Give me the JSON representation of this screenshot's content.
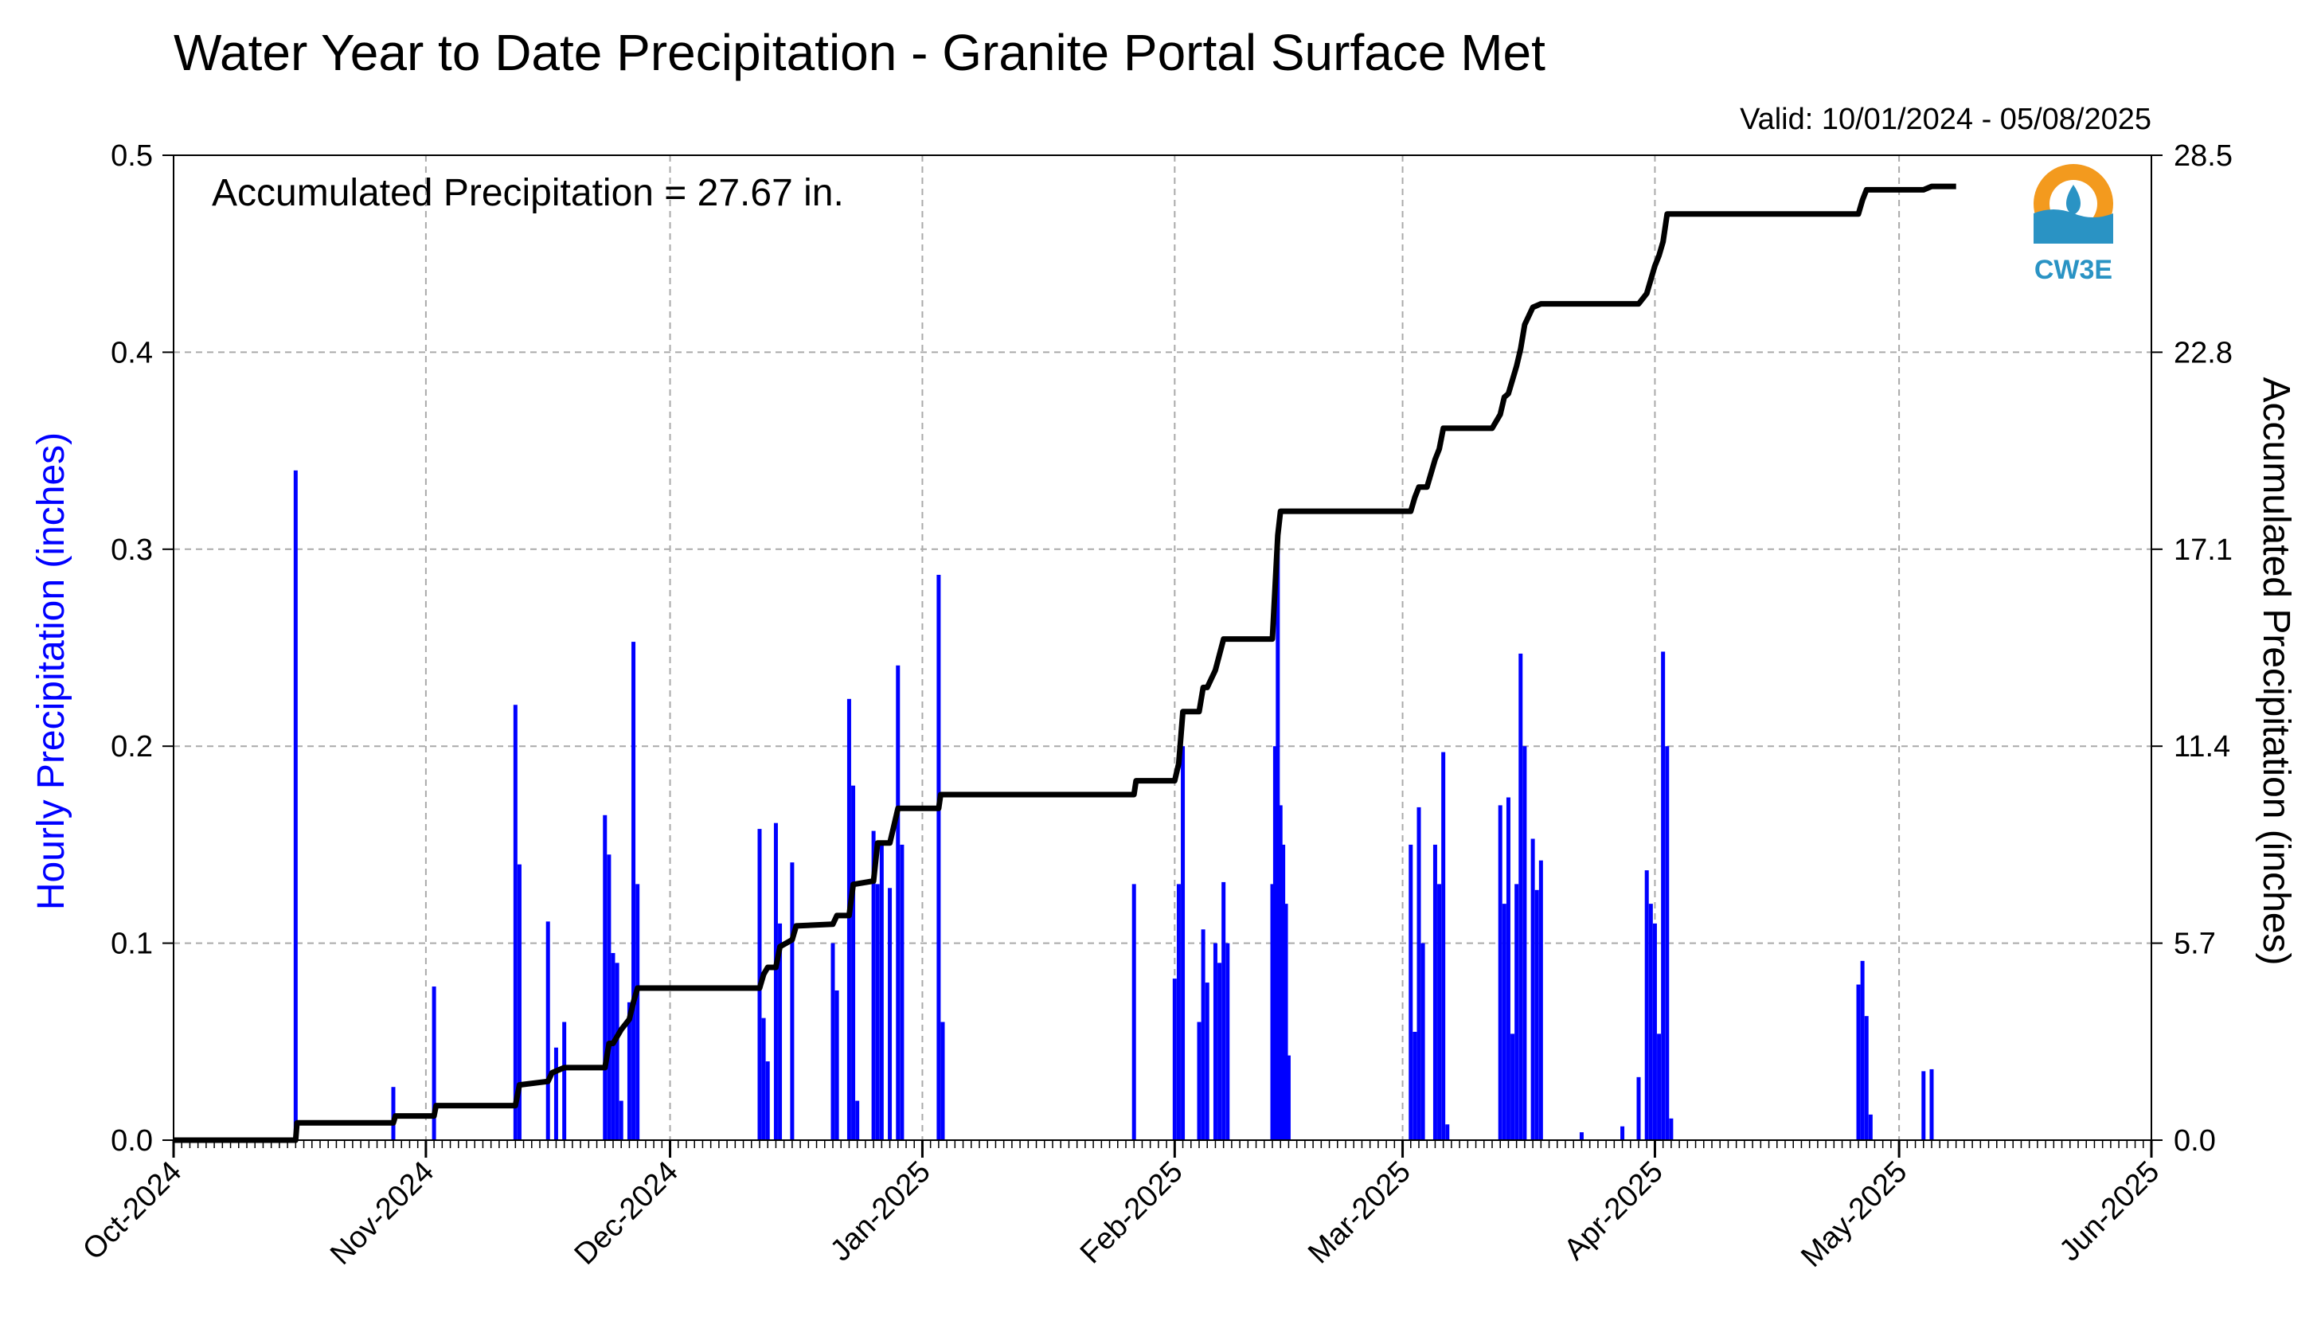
{
  "chart_data": {
    "type": "bar+line",
    "title": "Water Year to Date Precipitation - Granite Portal Surface Met",
    "valid_text": "Valid: 10/01/2024 - 05/08/2025",
    "annotation": "Accumulated Precipitation = 27.67 in.",
    "ylabel_left": "Hourly Precipitation (inches)",
    "ylabel_right": "Accumulated Precipitation (inches)",
    "x_start": "2024-10-01",
    "x_end": "2025-06-01",
    "x_ticks": [
      {
        "date": "2024-10-01",
        "label": "Oct-2024"
      },
      {
        "date": "2024-11-01",
        "label": "Nov-2024"
      },
      {
        "date": "2024-12-01",
        "label": "Dec-2024"
      },
      {
        "date": "2025-01-01",
        "label": "Jan-2025"
      },
      {
        "date": "2025-02-01",
        "label": "Feb-2025"
      },
      {
        "date": "2025-03-01",
        "label": "Mar-2025"
      },
      {
        "date": "2025-04-01",
        "label": "Apr-2025"
      },
      {
        "date": "2025-05-01",
        "label": "May-2025"
      },
      {
        "date": "2025-06-01",
        "label": "Jun-2025"
      }
    ],
    "ylim_left": [
      0,
      0.5
    ],
    "yticks_left": [
      "0.0",
      "0.1",
      "0.2",
      "0.3",
      "0.4",
      "0.5"
    ],
    "ylim_right": [
      0,
      28.5
    ],
    "yticks_right": [
      "0.0",
      "5.7",
      "11.4",
      "17.1",
      "22.8",
      "28.5"
    ],
    "grid": true,
    "colors": {
      "hourly": "#0000ff",
      "accumulated": "#000000",
      "grid": "#aaaaaa"
    },
    "hourly_series": {
      "name": "Hourly Precipitation",
      "points": [
        [
          "2024-10-16",
          0.34
        ],
        [
          "2024-10-28",
          0.027
        ],
        [
          "2024-11-02",
          0.078
        ],
        [
          "2024-11-12",
          0.221
        ],
        [
          "2024-11-12T12",
          0.14
        ],
        [
          "2024-11-16",
          0.111
        ],
        [
          "2024-11-17",
          0.047
        ],
        [
          "2024-11-18",
          0.06
        ],
        [
          "2024-11-23",
          0.165
        ],
        [
          "2024-11-23T12",
          0.145
        ],
        [
          "2024-11-24",
          0.095
        ],
        [
          "2024-11-24T12",
          0.09
        ],
        [
          "2024-11-25",
          0.02
        ],
        [
          "2024-11-26",
          0.07
        ],
        [
          "2024-11-26T12",
          0.253
        ],
        [
          "2024-11-27",
          0.13
        ],
        [
          "2024-12-12",
          0.158
        ],
        [
          "2024-12-12T12",
          0.062
        ],
        [
          "2024-12-13",
          0.04
        ],
        [
          "2024-12-14",
          0.161
        ],
        [
          "2024-12-14T12",
          0.11
        ],
        [
          "2024-12-16",
          0.141
        ],
        [
          "2024-12-21",
          0.1
        ],
        [
          "2024-12-21T12",
          0.076
        ],
        [
          "2024-12-23",
          0.224
        ],
        [
          "2024-12-23T12",
          0.18
        ],
        [
          "2024-12-24",
          0.02
        ],
        [
          "2024-12-26",
          0.157
        ],
        [
          "2024-12-26T12",
          0.13
        ],
        [
          "2024-12-27",
          0.15
        ],
        [
          "2024-12-28",
          0.128
        ],
        [
          "2024-12-29",
          0.241
        ],
        [
          "2024-12-29T12",
          0.15
        ],
        [
          "2025-01-03",
          0.287
        ],
        [
          "2025-01-03T12",
          0.06
        ],
        [
          "2025-01-27",
          0.13
        ],
        [
          "2025-02-01",
          0.082
        ],
        [
          "2025-02-01T12",
          0.13
        ],
        [
          "2025-02-02",
          0.2
        ],
        [
          "2025-02-04",
          0.06
        ],
        [
          "2025-02-04T12",
          0.107
        ],
        [
          "2025-02-05",
          0.08
        ],
        [
          "2025-02-06",
          0.1
        ],
        [
          "2025-02-06T12",
          0.09
        ],
        [
          "2025-02-07",
          0.131
        ],
        [
          "2025-02-07T12",
          0.1
        ],
        [
          "2025-02-13",
          0.13
        ],
        [
          "2025-02-13T08",
          0.2
        ],
        [
          "2025-02-13T16",
          0.309
        ],
        [
          "2025-02-14",
          0.17
        ],
        [
          "2025-02-14T08",
          0.15
        ],
        [
          "2025-02-14T16",
          0.12
        ],
        [
          "2025-02-15",
          0.043
        ],
        [
          "2025-03-02",
          0.15
        ],
        [
          "2025-03-02T12",
          0.055
        ],
        [
          "2025-03-03",
          0.169
        ],
        [
          "2025-03-03T12",
          0.1
        ],
        [
          "2025-03-05",
          0.15
        ],
        [
          "2025-03-05T12",
          0.13
        ],
        [
          "2025-03-06",
          0.197
        ],
        [
          "2025-03-06T12",
          0.008
        ],
        [
          "2025-03-13",
          0.17
        ],
        [
          "2025-03-13T12",
          0.12
        ],
        [
          "2025-03-14",
          0.174
        ],
        [
          "2025-03-14T12",
          0.054
        ],
        [
          "2025-03-15",
          0.13
        ],
        [
          "2025-03-15T12",
          0.247
        ],
        [
          "2025-03-16",
          0.2
        ],
        [
          "2025-03-17",
          0.153
        ],
        [
          "2025-03-17T12",
          0.127
        ],
        [
          "2025-03-18",
          0.142
        ],
        [
          "2025-03-23",
          0.004
        ],
        [
          "2025-03-28",
          0.007
        ],
        [
          "2025-03-30",
          0.032
        ],
        [
          "2025-03-31",
          0.137
        ],
        [
          "2025-03-31T12",
          0.12
        ],
        [
          "2025-04-01",
          0.11
        ],
        [
          "2025-04-01T12",
          0.054
        ],
        [
          "2025-04-02",
          0.248
        ],
        [
          "2025-04-02T12",
          0.2
        ],
        [
          "2025-04-03",
          0.011
        ],
        [
          "2025-04-26",
          0.079
        ],
        [
          "2025-04-26T12",
          0.091
        ],
        [
          "2025-04-27",
          0.063
        ],
        [
          "2025-04-27T12",
          0.013
        ],
        [
          "2025-05-04",
          0.035
        ],
        [
          "2025-05-05",
          0.036
        ]
      ]
    },
    "accumulated_series": {
      "name": "Accumulated Precipitation",
      "points": [
        [
          "2024-10-01",
          0.0
        ],
        [
          "2024-10-16",
          0.0
        ],
        [
          "2024-10-16T04",
          0.5
        ],
        [
          "2024-10-28",
          0.5
        ],
        [
          "2024-10-28T06",
          0.7
        ],
        [
          "2024-11-02",
          0.7
        ],
        [
          "2024-11-02T06",
          1.0
        ],
        [
          "2024-11-12",
          1.0
        ],
        [
          "2024-11-12T12",
          1.6
        ],
        [
          "2024-11-16",
          1.7
        ],
        [
          "2024-11-16T12",
          1.95
        ],
        [
          "2024-11-18",
          2.1
        ],
        [
          "2024-11-23",
          2.1
        ],
        [
          "2024-11-23T12",
          2.8
        ],
        [
          "2024-11-24",
          2.8
        ],
        [
          "2024-11-25",
          3.2
        ],
        [
          "2024-11-26",
          3.5
        ],
        [
          "2024-11-26T12",
          4.0
        ],
        [
          "2024-11-27",
          4.4
        ],
        [
          "2024-12-12",
          4.4
        ],
        [
          "2024-12-12T12",
          4.8
        ],
        [
          "2024-12-13",
          5.0
        ],
        [
          "2024-12-14",
          5.0
        ],
        [
          "2024-12-14T12",
          5.6
        ],
        [
          "2024-12-16",
          5.8
        ],
        [
          "2024-12-16T12",
          6.2
        ],
        [
          "2024-12-21",
          6.25
        ],
        [
          "2024-12-21T12",
          6.5
        ],
        [
          "2024-12-23",
          6.5
        ],
        [
          "2024-12-23T12",
          7.4
        ],
        [
          "2024-12-26",
          7.5
        ],
        [
          "2024-12-26T12",
          8.6
        ],
        [
          "2024-12-28",
          8.6
        ],
        [
          "2024-12-29",
          9.6
        ],
        [
          "2025-01-03",
          9.6
        ],
        [
          "2025-01-03T06",
          10.0
        ],
        [
          "2025-01-27",
          10.0
        ],
        [
          "2025-01-27T06",
          10.4
        ],
        [
          "2025-02-01",
          10.4
        ],
        [
          "2025-02-01T12",
          10.9
        ],
        [
          "2025-02-02",
          12.4
        ],
        [
          "2025-02-04",
          12.4
        ],
        [
          "2025-02-04T12",
          13.1
        ],
        [
          "2025-02-05",
          13.1
        ],
        [
          "2025-02-06",
          13.6
        ],
        [
          "2025-02-07",
          14.5
        ],
        [
          "2025-02-07T12",
          14.5
        ],
        [
          "2025-02-13",
          14.5
        ],
        [
          "2025-02-13T08",
          16.0
        ],
        [
          "2025-02-13T16",
          17.5
        ],
        [
          "2025-02-14",
          18.2
        ],
        [
          "2025-02-14T12",
          18.2
        ],
        [
          "2025-03-02",
          18.2
        ],
        [
          "2025-03-02T12",
          18.6
        ],
        [
          "2025-03-03",
          18.9
        ],
        [
          "2025-03-04",
          18.9
        ],
        [
          "2025-03-05",
          19.7
        ],
        [
          "2025-03-05T12",
          20.0
        ],
        [
          "2025-03-06",
          20.6
        ],
        [
          "2025-03-12",
          20.6
        ],
        [
          "2025-03-13",
          21.0
        ],
        [
          "2025-03-13T12",
          21.5
        ],
        [
          "2025-03-14",
          21.6
        ],
        [
          "2025-03-15",
          22.4
        ],
        [
          "2025-03-15T12",
          22.9
        ],
        [
          "2025-03-16",
          23.6
        ],
        [
          "2025-03-17",
          24.1
        ],
        [
          "2025-03-18",
          24.2
        ],
        [
          "2025-03-30",
          24.2
        ],
        [
          "2025-03-31",
          24.5
        ],
        [
          "2025-04-01",
          25.3
        ],
        [
          "2025-04-01T12",
          25.6
        ],
        [
          "2025-04-02",
          26.0
        ],
        [
          "2025-04-02T12",
          26.8
        ],
        [
          "2025-04-03",
          26.8
        ],
        [
          "2025-04-26",
          26.8
        ],
        [
          "2025-04-26T12",
          27.2
        ],
        [
          "2025-04-27",
          27.5
        ],
        [
          "2025-05-04",
          27.5
        ],
        [
          "2025-05-05",
          27.6
        ],
        [
          "2025-05-08",
          27.6
        ]
      ]
    }
  },
  "logo": {
    "text": "CW3E"
  }
}
